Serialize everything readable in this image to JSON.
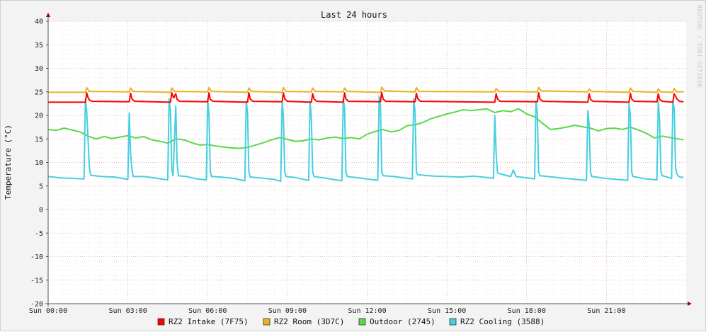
{
  "chart_data": {
    "type": "line",
    "title": "Last 24 hours",
    "ylabel": "Temperature (°C)",
    "watermark": "RRDTOOL / TOBI OETIKER",
    "ylim": [
      -20,
      40
    ],
    "yticks": [
      40,
      35,
      30,
      25,
      20,
      15,
      10,
      5,
      0,
      -5,
      -10,
      -15,
      -20
    ],
    "xlim": [
      0,
      24
    ],
    "xticks": [
      {
        "h": 0,
        "label": "Sun 00:00"
      },
      {
        "h": 3,
        "label": "Sun 03:00"
      },
      {
        "h": 6,
        "label": "Sun 06:00"
      },
      {
        "h": 9,
        "label": "Sun 09:00"
      },
      {
        "h": 12,
        "label": "Sun 12:00"
      },
      {
        "h": 15,
        "label": "Sun 15:00"
      },
      {
        "h": 18,
        "label": "Sun 18:00"
      },
      {
        "h": 21,
        "label": "Sun 21:00"
      }
    ],
    "legend_position": "bottom",
    "grid": true,
    "series": [
      {
        "name": "RZ2 Intake (7F75)",
        "color": "#ff0000",
        "x": [
          0,
          1.4,
          1.45,
          1.5,
          1.55,
          1.65,
          3.05,
          3.1,
          3.15,
          3.25,
          4.6,
          4.65,
          4.72,
          4.8,
          4.85,
          4.95,
          6.0,
          6.05,
          6.1,
          6.2,
          7.5,
          7.55,
          7.6,
          7.7,
          8.8,
          8.85,
          8.9,
          9.0,
          9.9,
          9.95,
          10.0,
          10.1,
          11.1,
          11.15,
          11.2,
          11.3,
          12.5,
          12.55,
          12.6,
          12.7,
          13.8,
          13.85,
          13.9,
          14.0,
          16.8,
          16.85,
          16.9,
          17.0,
          18.4,
          18.45,
          18.5,
          18.6,
          20.3,
          20.35,
          20.4,
          20.5,
          21.85,
          21.9,
          21.95,
          22.05,
          22.9,
          22.95,
          23.0,
          23.1,
          23.5,
          23.55,
          23.65,
          23.75,
          23.9
        ],
        "y": [
          22.8,
          22.8,
          24.8,
          23.8,
          23.3,
          23.0,
          22.9,
          24.7,
          23.5,
          23.0,
          22.8,
          24.8,
          23.7,
          24.6,
          23.4,
          23.0,
          22.9,
          24.8,
          23.4,
          23.0,
          22.8,
          24.8,
          23.5,
          23.0,
          22.9,
          24.8,
          23.5,
          23.0,
          22.8,
          24.6,
          23.5,
          23.0,
          22.8,
          24.8,
          23.5,
          23.0,
          22.9,
          24.9,
          23.5,
          23.0,
          22.9,
          24.7,
          23.6,
          23.0,
          22.8,
          24.6,
          23.5,
          23.0,
          22.9,
          24.8,
          23.5,
          23.0,
          22.8,
          24.6,
          23.4,
          23.0,
          22.8,
          24.7,
          23.5,
          23.0,
          22.9,
          24.6,
          23.4,
          23.0,
          22.8,
          24.6,
          23.5,
          23.0,
          22.9
        ]
      },
      {
        "name": "RZ2 Room (3D7C)",
        "color": "#e6b422",
        "x": [
          0,
          1.4,
          1.45,
          1.55,
          3.05,
          3.1,
          3.2,
          4.6,
          4.65,
          4.75,
          6.0,
          6.05,
          6.15,
          7.5,
          7.55,
          7.65,
          8.8,
          8.85,
          8.95,
          9.9,
          9.95,
          10.05,
          11.1,
          11.15,
          11.25,
          12.5,
          12.55,
          12.65,
          13.8,
          13.85,
          13.95,
          16.8,
          16.85,
          16.95,
          18.4,
          18.45,
          18.55,
          20.3,
          20.35,
          20.45,
          21.85,
          21.9,
          22.0,
          22.9,
          22.95,
          23.05,
          23.5,
          23.55,
          23.65,
          23.9
        ],
        "y": [
          24.9,
          24.9,
          25.9,
          25.1,
          25.0,
          25.8,
          25.1,
          24.9,
          25.8,
          25.1,
          25.0,
          25.9,
          25.1,
          24.9,
          25.8,
          25.1,
          24.9,
          25.9,
          25.1,
          25.0,
          25.8,
          25.1,
          25.0,
          25.8,
          25.1,
          24.9,
          26.0,
          25.2,
          25.0,
          25.9,
          25.1,
          25.0,
          25.7,
          25.1,
          25.0,
          25.9,
          25.2,
          25.0,
          25.6,
          25.1,
          24.9,
          25.8,
          25.1,
          24.9,
          25.6,
          25.0,
          24.9,
          25.7,
          25.0,
          25.0
        ]
      },
      {
        "name": "Outdoor (2745)",
        "color": "#5bd84a",
        "x": [
          0,
          0.3,
          0.6,
          0.9,
          1.2,
          1.5,
          1.8,
          2.1,
          2.4,
          2.7,
          3.0,
          3.3,
          3.6,
          3.9,
          4.2,
          4.5,
          4.8,
          5.1,
          5.4,
          5.7,
          6.0,
          6.3,
          6.6,
          6.9,
          7.2,
          7.5,
          7.8,
          8.1,
          8.4,
          8.7,
          9.0,
          9.3,
          9.6,
          9.9,
          10.2,
          10.5,
          10.8,
          11.1,
          11.4,
          11.7,
          12.0,
          12.3,
          12.6,
          12.9,
          13.2,
          13.5,
          13.8,
          14.1,
          14.4,
          14.7,
          15.0,
          15.3,
          15.6,
          15.9,
          16.2,
          16.5,
          16.8,
          17.1,
          17.4,
          17.7,
          18.0,
          18.3,
          18.6,
          18.9,
          19.2,
          19.5,
          19.8,
          20.1,
          20.4,
          20.7,
          21.0,
          21.3,
          21.6,
          21.9,
          22.2,
          22.5,
          22.8,
          23.1,
          23.4,
          23.7,
          23.9
        ],
        "y": [
          17.0,
          16.8,
          17.3,
          16.9,
          16.5,
          15.6,
          15.0,
          15.5,
          15.1,
          15.4,
          15.7,
          15.2,
          15.5,
          14.8,
          14.5,
          14.1,
          15.0,
          14.8,
          14.2,
          13.7,
          13.8,
          13.5,
          13.3,
          13.1,
          13.0,
          13.2,
          13.7,
          14.2,
          14.8,
          15.3,
          14.9,
          14.5,
          14.6,
          15.0,
          14.8,
          15.2,
          15.4,
          15.1,
          15.3,
          15.0,
          16.0,
          16.6,
          17.0,
          16.5,
          16.8,
          17.8,
          18.0,
          18.5,
          19.3,
          19.8,
          20.3,
          20.7,
          21.2,
          21.0,
          21.2,
          21.4,
          20.6,
          21.0,
          20.8,
          21.4,
          20.3,
          19.7,
          18.3,
          17.0,
          17.2,
          17.5,
          17.9,
          17.6,
          17.3,
          16.7,
          17.2,
          17.3,
          17.0,
          17.5,
          16.9,
          16.2,
          15.2,
          15.6,
          15.3,
          15.0,
          14.8
        ]
      },
      {
        "name": "RZ2 Cooling (3588)",
        "color": "#45cfdf",
        "x": [
          0,
          0.5,
          1.0,
          1.35,
          1.4,
          1.45,
          1.55,
          1.6,
          2.0,
          2.5,
          3.0,
          3.05,
          3.1,
          3.15,
          3.2,
          3.6,
          4.0,
          4.5,
          4.55,
          4.6,
          4.65,
          4.7,
          4.8,
          4.85,
          4.9,
          5.2,
          5.6,
          5.95,
          6.0,
          6.05,
          6.1,
          6.15,
          6.5,
          7.0,
          7.4,
          7.45,
          7.5,
          7.55,
          7.6,
          8.0,
          8.5,
          8.75,
          8.8,
          8.85,
          8.9,
          8.95,
          9.3,
          9.8,
          9.85,
          9.9,
          9.95,
          10.0,
          10.5,
          11.05,
          11.1,
          11.15,
          11.2,
          11.25,
          11.7,
          12.4,
          12.45,
          12.5,
          12.55,
          12.6,
          13.0,
          13.7,
          13.75,
          13.8,
          13.85,
          13.9,
          14.5,
          15.0,
          15.5,
          16.0,
          16.5,
          16.75,
          16.8,
          16.85,
          16.9,
          17.0,
          17.4,
          17.5,
          17.6,
          18.3,
          18.35,
          18.4,
          18.45,
          18.5,
          19.0,
          19.5,
          20.25,
          20.3,
          20.35,
          20.4,
          20.45,
          21.0,
          21.8,
          21.85,
          21.9,
          21.95,
          22.0,
          22.5,
          22.9,
          22.95,
          23.0,
          23.05,
          23.1,
          23.45,
          23.5,
          23.55,
          23.6,
          23.65,
          23.75,
          23.9
        ],
        "y": [
          7.0,
          6.7,
          6.6,
          6.5,
          23.5,
          21.0,
          9.0,
          7.3,
          7.0,
          6.9,
          6.4,
          20.5,
          12.0,
          8.5,
          7.0,
          7.0,
          6.7,
          6.3,
          23.5,
          21.0,
          8.5,
          7.2,
          22.0,
          10.0,
          7.2,
          7.0,
          6.5,
          6.3,
          23.5,
          20.0,
          8.0,
          7.0,
          6.9,
          6.6,
          6.1,
          23.0,
          20.5,
          8.0,
          6.9,
          6.7,
          6.4,
          6.0,
          23.0,
          20.0,
          8.0,
          7.0,
          6.8,
          6.2,
          23.0,
          19.5,
          8.0,
          7.0,
          6.6,
          6.1,
          23.5,
          21.5,
          8.0,
          7.0,
          6.7,
          6.2,
          24.0,
          22.0,
          8.0,
          7.2,
          7.0,
          6.5,
          23.5,
          21.0,
          8.0,
          7.4,
          7.1,
          7.0,
          6.9,
          7.1,
          6.8,
          6.6,
          20.0,
          12.0,
          7.8,
          7.6,
          7.0,
          8.4,
          7.0,
          6.5,
          23.0,
          20.5,
          8.0,
          7.2,
          6.9,
          6.6,
          6.2,
          21.0,
          18.0,
          8.0,
          7.0,
          6.6,
          6.2,
          22.5,
          20.0,
          8.0,
          7.0,
          6.5,
          6.3,
          23.0,
          19.0,
          8.0,
          7.2,
          6.6,
          23.0,
          21.5,
          9.0,
          7.5,
          6.9,
          6.8
        ]
      }
    ]
  }
}
